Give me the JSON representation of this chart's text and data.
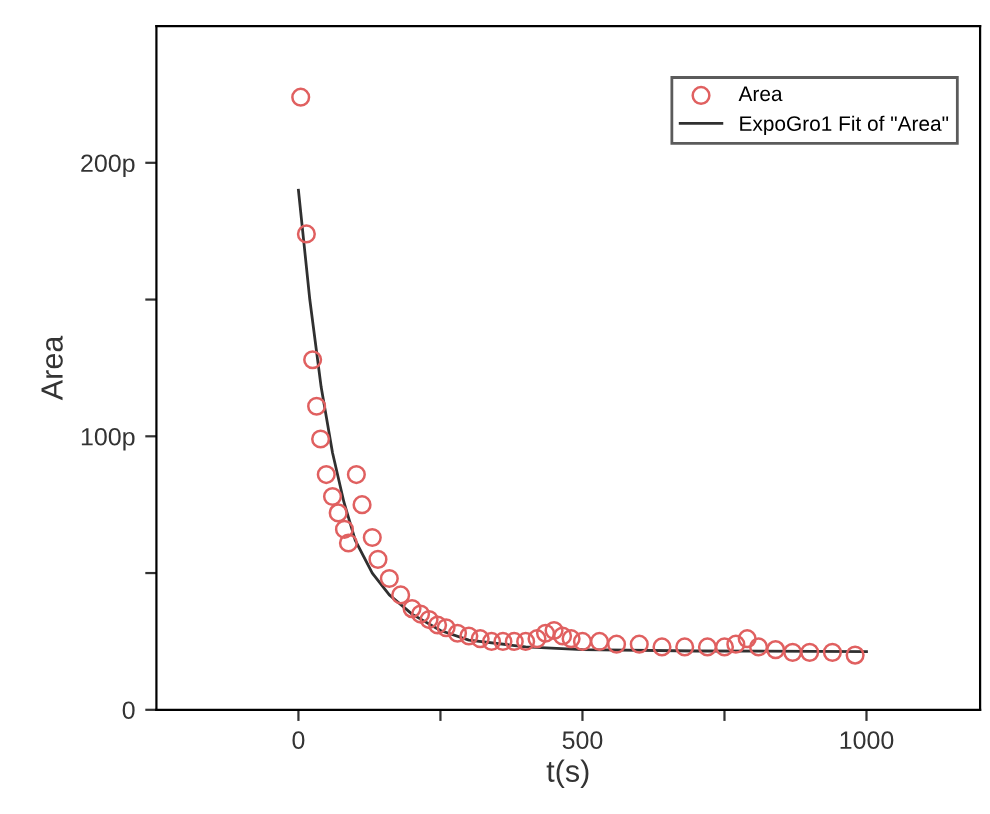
{
  "chart_data": {
    "type": "scatter",
    "xlabel": "t(s)",
    "ylabel": "Area",
    "xlim": [
      -250,
      1200
    ],
    "ylim": [
      0,
      250
    ],
    "xticks": [
      0,
      {
        "value": 250,
        "label": null
      },
      500,
      {
        "value": 750,
        "label": null
      },
      1000
    ],
    "yticks": [
      {
        "value": 0,
        "label": "0"
      },
      {
        "value": 50,
        "label": null
      },
      {
        "value": 100,
        "label": "100p"
      },
      {
        "value": 150,
        "label": null
      },
      {
        "value": 200,
        "label": "200p"
      }
    ],
    "grid": false,
    "legend": "top right",
    "series": [
      {
        "name": "Area",
        "marker": "circle",
        "color": "#e06060",
        "x": [
          4,
          14,
          25,
          32,
          39,
          49,
          60,
          70,
          81,
          88,
          102,
          112,
          130,
          140,
          160,
          180,
          200,
          215,
          230,
          245,
          260,
          280,
          300,
          320,
          340,
          360,
          380,
          400,
          420,
          435,
          450,
          465,
          480,
          500,
          530,
          560,
          600,
          640,
          680,
          720,
          750,
          770,
          790,
          810,
          840,
          870,
          900,
          940,
          980
        ],
        "values": [
          224,
          174,
          128,
          111,
          99,
          86,
          78,
          72,
          66,
          61,
          86,
          75,
          63,
          55,
          48,
          42,
          37,
          35,
          33,
          31,
          30,
          28,
          27,
          26,
          25,
          25,
          25,
          25,
          26,
          28,
          29,
          27,
          26,
          25,
          25,
          24,
          24,
          23,
          23,
          23,
          23,
          24,
          26,
          23,
          22,
          21,
          21,
          21,
          20
        ]
      },
      {
        "name": "ExpoGro1 Fit of \"Area\"",
        "type": "line",
        "marker": "none",
        "line_style": "solid",
        "color": "#303030",
        "x": [
          0,
          20,
          40,
          60,
          80,
          100,
          130,
          160,
          200,
          250,
          300,
          400,
          500,
          700,
          1000
        ],
        "values": [
          190,
          150,
          118,
          94,
          76,
          62,
          50,
          42,
          35,
          29,
          25.5,
          23,
          22,
          21.5,
          21.3
        ]
      }
    ]
  }
}
